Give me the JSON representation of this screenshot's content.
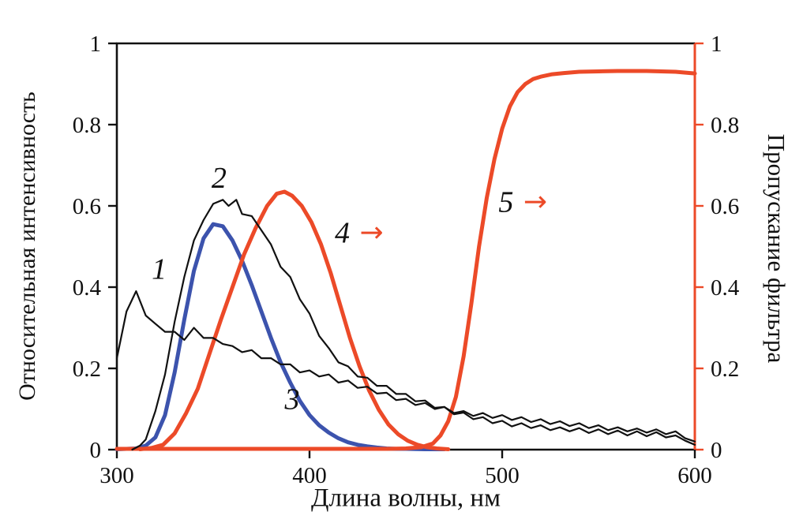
{
  "chart_data": {
    "type": "line",
    "title": "",
    "xlabel": "Длина волны, нм",
    "ylabel_left": "Относительная интенсивность",
    "ylabel_right": "Пропускание фильтра",
    "xlim": [
      300,
      600
    ],
    "ylim": [
      0,
      1
    ],
    "x_ticks": [
      300,
      400,
      500,
      600
    ],
    "x_tick_labels": [
      "300",
      "400",
      "500",
      "600"
    ],
    "y_ticks": [
      0,
      0.2,
      0.4,
      0.6,
      0.8,
      1
    ],
    "y_tick_labels": [
      "0",
      "0.2",
      "0.4",
      "0.6",
      "0.8",
      "1"
    ],
    "grid": false,
    "legend": "none",
    "colors": {
      "black": "#111111",
      "blue": "#3c53ad",
      "red": "#ec4a28"
    },
    "series": [
      {
        "name": "3",
        "color": "blue",
        "width": 5,
        "points": [
          [
            300,
            0.001
          ],
          [
            310,
            0.003
          ],
          [
            315,
            0.01
          ],
          [
            320,
            0.03
          ],
          [
            325,
            0.085
          ],
          [
            330,
            0.19
          ],
          [
            335,
            0.32
          ],
          [
            340,
            0.44
          ],
          [
            345,
            0.52
          ],
          [
            350,
            0.555
          ],
          [
            355,
            0.55
          ],
          [
            360,
            0.515
          ],
          [
            365,
            0.465
          ],
          [
            370,
            0.405
          ],
          [
            375,
            0.34
          ],
          [
            380,
            0.275
          ],
          [
            385,
            0.215
          ],
          [
            390,
            0.165
          ],
          [
            395,
            0.12
          ],
          [
            400,
            0.085
          ],
          [
            405,
            0.06
          ],
          [
            410,
            0.042
          ],
          [
            415,
            0.028
          ],
          [
            420,
            0.018
          ],
          [
            425,
            0.012
          ],
          [
            430,
            0.008
          ],
          [
            435,
            0.005
          ],
          [
            440,
            0.003
          ],
          [
            445,
            0.002
          ],
          [
            450,
            0.002
          ],
          [
            460,
            0.001
          ],
          [
            470,
            0.001
          ]
        ]
      },
      {
        "name": "4",
        "color": "red",
        "width": 5,
        "points": [
          [
            312,
            0.001
          ],
          [
            318,
            0.004
          ],
          [
            324,
            0.012
          ],
          [
            330,
            0.04
          ],
          [
            336,
            0.09
          ],
          [
            342,
            0.15
          ],
          [
            348,
            0.235
          ],
          [
            354,
            0.32
          ],
          [
            360,
            0.4
          ],
          [
            366,
            0.48
          ],
          [
            372,
            0.545
          ],
          [
            378,
            0.6
          ],
          [
            383,
            0.63
          ],
          [
            387,
            0.635
          ],
          [
            391,
            0.625
          ],
          [
            396,
            0.6
          ],
          [
            401,
            0.56
          ],
          [
            406,
            0.505
          ],
          [
            411,
            0.435
          ],
          [
            416,
            0.355
          ],
          [
            421,
            0.275
          ],
          [
            426,
            0.205
          ],
          [
            431,
            0.145
          ],
          [
            436,
            0.098
          ],
          [
            441,
            0.062
          ],
          [
            446,
            0.038
          ],
          [
            451,
            0.022
          ],
          [
            456,
            0.012
          ],
          [
            461,
            0.006
          ],
          [
            466,
            0.003
          ],
          [
            472,
            0.001
          ]
        ]
      },
      {
        "name": "5",
        "color": "red",
        "width": 5,
        "points": [
          [
            300,
            0.002
          ],
          [
            330,
            0.002
          ],
          [
            360,
            0.002
          ],
          [
            390,
            0.002
          ],
          [
            420,
            0.002
          ],
          [
            440,
            0.002
          ],
          [
            450,
            0.003
          ],
          [
            458,
            0.006
          ],
          [
            464,
            0.015
          ],
          [
            468,
            0.035
          ],
          [
            472,
            0.07
          ],
          [
            476,
            0.13
          ],
          [
            480,
            0.23
          ],
          [
            484,
            0.36
          ],
          [
            488,
            0.5
          ],
          [
            492,
            0.62
          ],
          [
            496,
            0.715
          ],
          [
            500,
            0.79
          ],
          [
            504,
            0.845
          ],
          [
            508,
            0.88
          ],
          [
            512,
            0.9
          ],
          [
            516,
            0.912
          ],
          [
            520,
            0.918
          ],
          [
            526,
            0.924
          ],
          [
            532,
            0.927
          ],
          [
            540,
            0.93
          ],
          [
            550,
            0.931
          ],
          [
            560,
            0.932
          ],
          [
            575,
            0.932
          ],
          [
            590,
            0.93
          ],
          [
            600,
            0.926
          ]
        ]
      },
      {
        "name": "1",
        "color": "black",
        "width": 2.2,
        "points": [
          [
            300,
            0.225
          ],
          [
            305,
            0.34
          ],
          [
            310,
            0.39
          ],
          [
            315,
            0.33
          ],
          [
            320,
            0.31
          ],
          [
            325,
            0.29
          ],
          [
            330,
            0.29
          ],
          [
            335,
            0.27
          ],
          [
            340,
            0.3
          ],
          [
            345,
            0.275
          ],
          [
            350,
            0.275
          ],
          [
            355,
            0.26
          ],
          [
            360,
            0.255
          ],
          [
            365,
            0.24
          ],
          [
            370,
            0.245
          ],
          [
            375,
            0.225
          ],
          [
            380,
            0.225
          ],
          [
            385,
            0.21
          ],
          [
            390,
            0.21
          ],
          [
            395,
            0.19
          ],
          [
            400,
            0.195
          ],
          [
            405,
            0.18
          ],
          [
            410,
            0.185
          ],
          [
            415,
            0.165
          ],
          [
            420,
            0.17
          ],
          [
            425,
            0.152
          ],
          [
            430,
            0.155
          ],
          [
            435,
            0.138
          ],
          [
            440,
            0.14
          ],
          [
            445,
            0.122
          ],
          [
            450,
            0.125
          ],
          [
            455,
            0.11
          ],
          [
            460,
            0.115
          ],
          [
            465,
            0.1
          ],
          [
            470,
            0.105
          ],
          [
            475,
            0.09
          ],
          [
            480,
            0.095
          ],
          [
            485,
            0.083
          ],
          [
            490,
            0.09
          ],
          [
            495,
            0.078
          ],
          [
            500,
            0.085
          ],
          [
            505,
            0.073
          ],
          [
            510,
            0.08
          ],
          [
            515,
            0.068
          ],
          [
            520,
            0.075
          ],
          [
            525,
            0.063
          ],
          [
            530,
            0.07
          ],
          [
            535,
            0.058
          ],
          [
            540,
            0.065
          ],
          [
            545,
            0.053
          ],
          [
            550,
            0.06
          ],
          [
            555,
            0.048
          ],
          [
            560,
            0.055
          ],
          [
            565,
            0.045
          ],
          [
            570,
            0.052
          ],
          [
            575,
            0.042
          ],
          [
            580,
            0.05
          ],
          [
            585,
            0.038
          ],
          [
            590,
            0.045
          ],
          [
            595,
            0.028
          ],
          [
            600,
            0.02
          ]
        ]
      },
      {
        "name": "2",
        "color": "black",
        "width": 2.2,
        "points": [
          [
            308,
            0
          ],
          [
            312,
            0.01
          ],
          [
            315,
            0.025
          ],
          [
            320,
            0.095
          ],
          [
            325,
            0.185
          ],
          [
            330,
            0.315
          ],
          [
            335,
            0.425
          ],
          [
            340,
            0.515
          ],
          [
            345,
            0.565
          ],
          [
            350,
            0.605
          ],
          [
            355,
            0.615
          ],
          [
            358,
            0.6
          ],
          [
            362,
            0.615
          ],
          [
            365,
            0.58
          ],
          [
            370,
            0.575
          ],
          [
            375,
            0.54
          ],
          [
            380,
            0.505
          ],
          [
            385,
            0.45
          ],
          [
            390,
            0.425
          ],
          [
            395,
            0.37
          ],
          [
            400,
            0.335
          ],
          [
            405,
            0.28
          ],
          [
            410,
            0.25
          ],
          [
            415,
            0.215
          ],
          [
            420,
            0.205
          ],
          [
            425,
            0.18
          ],
          [
            430,
            0.177
          ],
          [
            435,
            0.157
          ],
          [
            440,
            0.157
          ],
          [
            445,
            0.137
          ],
          [
            450,
            0.137
          ],
          [
            455,
            0.119
          ],
          [
            460,
            0.121
          ],
          [
            465,
            0.103
          ],
          [
            470,
            0.105
          ],
          [
            475,
            0.087
          ],
          [
            480,
            0.091
          ],
          [
            485,
            0.075
          ],
          [
            490,
            0.08
          ],
          [
            495,
            0.065
          ],
          [
            500,
            0.071
          ],
          [
            505,
            0.057
          ],
          [
            510,
            0.065
          ],
          [
            515,
            0.053
          ],
          [
            520,
            0.06
          ],
          [
            525,
            0.048
          ],
          [
            530,
            0.055
          ],
          [
            535,
            0.045
          ],
          [
            540,
            0.053
          ],
          [
            545,
            0.041
          ],
          [
            550,
            0.05
          ],
          [
            555,
            0.038
          ],
          [
            560,
            0.047
          ],
          [
            565,
            0.035
          ],
          [
            570,
            0.045
          ],
          [
            575,
            0.033
          ],
          [
            580,
            0.043
          ],
          [
            585,
            0.03
          ],
          [
            590,
            0.035
          ],
          [
            595,
            0.022
          ],
          [
            600,
            0.012
          ]
        ]
      }
    ],
    "annotations": [
      {
        "text": "1",
        "x": 322,
        "y": 0.42,
        "arrow": false
      },
      {
        "text": "2",
        "x": 353,
        "y": 0.645,
        "arrow": false
      },
      {
        "text": "3",
        "x": 391,
        "y": 0.1,
        "arrow": false
      },
      {
        "text": "4",
        "x": 417,
        "y": 0.51,
        "arrow": true
      },
      {
        "text": "5",
        "x": 502,
        "y": 0.585,
        "arrow": true
      }
    ]
  }
}
